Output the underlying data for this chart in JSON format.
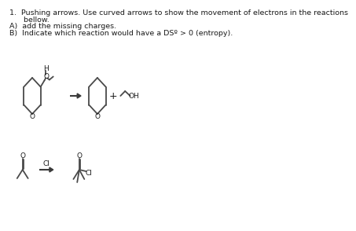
{
  "background_color": "#ffffff",
  "text_color": "#1a1a1a",
  "line_color": "#4a4a4a",
  "title_lines": [
    "1.  Pushing arrows. Use curved arrows to show the movement of electrons in the reactions",
    "      bellow.",
    "A)  add the missing charges.",
    "B)  Indicate which reaction would have a DSº > 0 (entropy)."
  ],
  "title_fontsize": 6.8,
  "label_fontsize": 6.5,
  "lw": 1.3
}
